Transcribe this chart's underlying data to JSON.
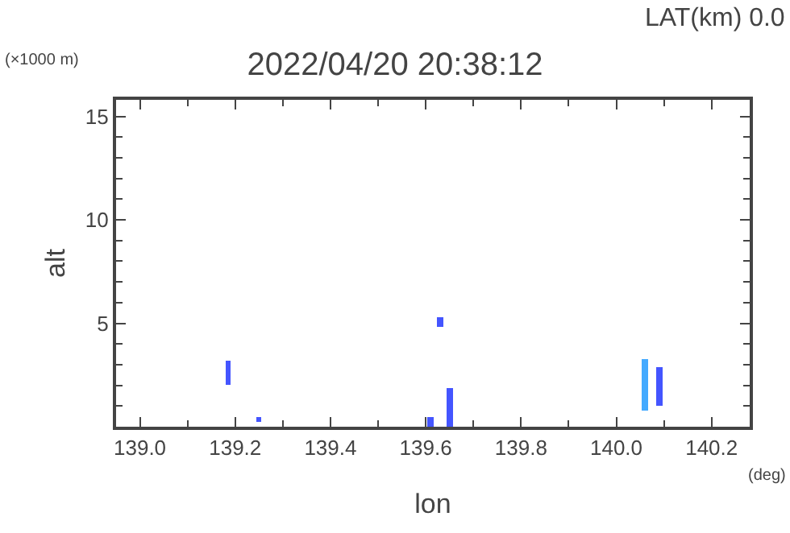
{
  "chart_data": {
    "type": "bar",
    "title": "2022/04/20 20:38:12",
    "xlabel": "lon",
    "ylabel": "alt",
    "annotations": [
      "LAT(km) 0.0",
      "(×1000 m)",
      "(deg)"
    ],
    "x": [
      139.185,
      139.25,
      139.61,
      139.63,
      139.65,
      140.06,
      140.09
    ],
    "base": [
      2.0,
      0.2,
      0.0,
      4.8,
      0.0,
      0.8,
      1.0
    ],
    "values": [
      1.2,
      0.3,
      0.45,
      0.5,
      1.9,
      2.5,
      1.9
    ],
    "colors": [
      "#4455ff",
      "#4455ff",
      "#4455ff",
      "#4455ff",
      "#4455ff",
      "#44aaff",
      "#4455ff"
    ],
    "xlim": [
      138.95,
      140.28
    ],
    "xticks": [
      {
        "value": 139.0,
        "label": "139.0"
      },
      {
        "value": 139.2,
        "label": "139.2"
      },
      {
        "value": 139.4,
        "label": "139.4"
      },
      {
        "value": 139.6,
        "label": "139.6"
      },
      {
        "value": 139.8,
        "label": "139.8"
      },
      {
        "value": 140.0,
        "label": "140.0"
      },
      {
        "value": 140.2,
        "label": "140.2"
      }
    ],
    "ylim": [
      0,
      15.8
    ],
    "yticks": [
      5,
      10,
      15
    ]
  }
}
